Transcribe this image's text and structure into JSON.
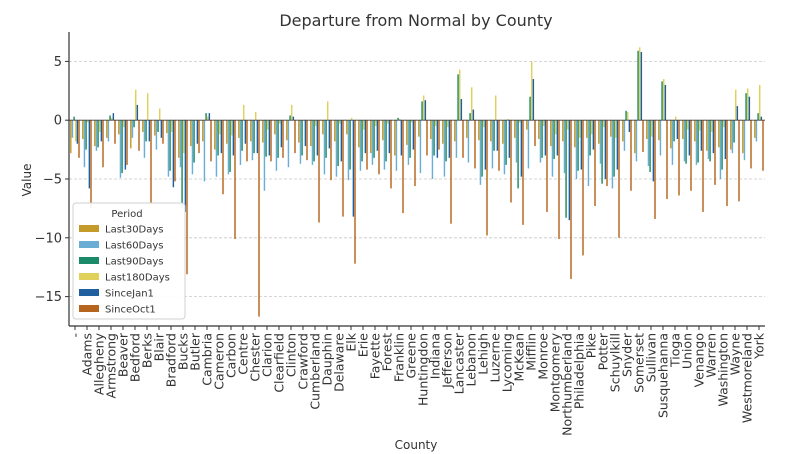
{
  "chart_data": {
    "type": "bar",
    "title": "Departure from Normal by County",
    "xlabel": "County",
    "ylabel": "Value",
    "ylim": [
      -17.5,
      7.5
    ],
    "yticks": [
      5,
      0,
      -5,
      -10,
      -15
    ],
    "grid": "horizontal dashed",
    "legend": {
      "title": "Period",
      "placement": "lower-left"
    },
    "categories": [
      "-",
      "Adams",
      "Allegheny",
      "Armstrong",
      "Beaver",
      "Bedford",
      "Berks",
      "Blair",
      "Bradford",
      "Bucks",
      "Butler",
      "Cambria",
      "Cameron",
      "Carbon",
      "Centre",
      "Chester",
      "Clarion",
      "Clearfield",
      "Clinton",
      "Crawford",
      "Cumberland",
      "Dauphin",
      "Delaware",
      "Elk",
      "Erie",
      "Fayette",
      "Forest",
      "Franklin",
      "Greene",
      "Huntingdon",
      "Indiana",
      "Jefferson",
      "Lancaster",
      "Lebanon",
      "Lehigh",
      "Luzerne",
      "Lycoming",
      "McKean",
      "Mifflin",
      "Monroe",
      "Montgomery",
      "Northumberland",
      "Philadelphia",
      "Pike",
      "Potter",
      "Schuylkill",
      "Snyder",
      "Somerset",
      "Sullivan",
      "Susquehanna",
      "Tioga",
      "Union",
      "Venango",
      "Warren",
      "Washington",
      "Wayne",
      "Westmoreland",
      "York"
    ],
    "series": [
      {
        "name": "Last30Days",
        "color": "#c49a2a",
        "values": [
          -2.8,
          -1.6,
          -2.2,
          -1.5,
          -1.2,
          -2.4,
          -1.0,
          -1.3,
          -1.1,
          -3.2,
          -2.2,
          -1.8,
          -2.5,
          -2.0,
          -1.5,
          -1.8,
          -1.9,
          -1.2,
          -1.7,
          -1.9,
          -2.2,
          -1.2,
          -1.8,
          -1.2,
          -2.3,
          -2.8,
          -1.7,
          -3.0,
          -2.1,
          -1.4,
          -1.6,
          -2.0,
          -1.8,
          -1.5,
          -1.7,
          -1.8,
          -2.0,
          -1.5,
          -0.8,
          -1.6,
          -2.2,
          -1.8,
          -2.3,
          -1.5,
          -2.0,
          -1.4,
          -1.8,
          -2.8,
          -1.6,
          -1.7,
          -2.4,
          -1.6,
          -1.8,
          -2.6,
          -2.3,
          -2.5,
          -2.8,
          -1.5
        ]
      },
      {
        "name": "Last60Days",
        "color": "#6aaed6",
        "values": [
          -1.5,
          -4.0,
          -2.6,
          -1.8,
          -4.9,
          -1.5,
          -3.2,
          -2.5,
          -4.8,
          -4.0,
          -4.6,
          -5.2,
          -4.8,
          -4.6,
          -3.8,
          -3.4,
          -6.0,
          -4.3,
          -4.0,
          -3.7,
          -3.8,
          -4.6,
          -4.8,
          -5.1,
          -4.3,
          -3.8,
          -4.2,
          -4.3,
          -3.8,
          -4.5,
          -5.0,
          -4.8,
          -3.2,
          -3.6,
          -5.5,
          -4.1,
          -4.6,
          -3.6,
          -4.1,
          -3.6,
          -4.8,
          -4.5,
          -5.0,
          -5.6,
          -3.7,
          -5.8,
          -2.6,
          -3.5,
          -3.9,
          -3.0,
          -3.8,
          -3.5,
          -3.8,
          -3.3,
          -5.0,
          -2.8,
          -3.4,
          -1.8
        ]
      },
      {
        "name": "Last90Days",
        "color": "#1a8a68",
        "values": [
          0.3,
          -2.5,
          -2.3,
          0.4,
          -4.5,
          -0.6,
          -1.8,
          -1.0,
          -4.3,
          -7.5,
          -3.6,
          0.6,
          -3.0,
          -4.4,
          -2.6,
          -2.8,
          -3.1,
          -3.2,
          0.4,
          -3.0,
          -3.5,
          -3.2,
          -3.9,
          -4.2,
          -3.5,
          -3.2,
          -3.5,
          0.2,
          -3.2,
          1.6,
          -3.0,
          -3.5,
          3.9,
          0.6,
          -4.8,
          -2.6,
          -3.8,
          -5.8,
          2.0,
          -3.2,
          -3.3,
          -8.3,
          -4.3,
          -3.0,
          -5.4,
          -4.8,
          0.8,
          5.9,
          -4.4,
          3.3,
          -1.8,
          -3.7,
          -3.6,
          -3.5,
          -4.2,
          -1.9,
          2.3,
          0.6
        ]
      },
      {
        "name": "Last180Days",
        "color": "#e0d15a",
        "values": [
          -1.8,
          -0.2,
          -1.0,
          0.2,
          -0.6,
          2.6,
          2.3,
          1.0,
          -1.0,
          -2.8,
          0.0,
          0.3,
          -1.2,
          -1.3,
          1.3,
          0.7,
          -0.8,
          -0.3,
          1.3,
          0.0,
          -0.5,
          1.6,
          -0.3,
          0.2,
          -0.8,
          -0.5,
          -0.3,
          0.1,
          -0.2,
          2.1,
          -0.5,
          -0.6,
          4.3,
          2.8,
          -0.6,
          2.1,
          0.1,
          -0.2,
          5.0,
          -0.5,
          -1.2,
          -0.8,
          -1.5,
          -1.2,
          -0.6,
          -1.5,
          0.7,
          6.2,
          -1.4,
          3.5,
          0.3,
          -0.8,
          -0.9,
          -1.0,
          -0.6,
          2.6,
          2.7,
          3.0
        ]
      },
      {
        "name": "SinceJan1",
        "color": "#1f5fa0",
        "values": [
          -2.0,
          -5.8,
          -1.8,
          0.6,
          -4.2,
          1.3,
          -1.8,
          -1.5,
          -5.7,
          -7.8,
          -2.0,
          0.6,
          -2.8,
          -3.0,
          -2.0,
          -2.8,
          -3.0,
          -2.3,
          0.3,
          -2.2,
          -3.0,
          -2.4,
          -3.5,
          -8.2,
          -2.8,
          -2.6,
          -2.8,
          -3.0,
          -2.5,
          1.7,
          -3.2,
          -3.2,
          1.8,
          0.9,
          -4.2,
          -2.6,
          -3.2,
          -4.8,
          3.5,
          -3.0,
          -3.0,
          -8.5,
          -4.2,
          -2.5,
          -5.0,
          -4.2,
          -1.0,
          5.8,
          -5.2,
          3.0,
          -1.6,
          -3.0,
          -2.6,
          -2.8,
          -3.3,
          1.2,
          2.0,
          0.3
        ]
      },
      {
        "name": "SinceOct1",
        "color": "#b5651d",
        "values": [
          -3.2,
          -7.5,
          -4.0,
          -2.0,
          -3.8,
          -2.6,
          -7.0,
          -2.0,
          -5.2,
          -13.1,
          -2.8,
          -3.5,
          -6.3,
          -10.1,
          -3.5,
          -16.7,
          -3.5,
          -3.2,
          -2.8,
          -3.4,
          -8.7,
          -5.1,
          -8.2,
          -12.2,
          -4.2,
          -4.6,
          -5.8,
          -7.9,
          -5.6,
          -3.0,
          -2.5,
          -8.8,
          -3.2,
          -4.1,
          -9.8,
          -4.3,
          -7.0,
          -8.9,
          -2.2,
          -7.8,
          -10.1,
          -13.5,
          -11.5,
          -7.3,
          -5.6,
          -10.0,
          -6.0,
          -2.7,
          -8.4,
          -6.7,
          -6.4,
          -6.0,
          -7.8,
          -5.5,
          -7.3,
          -6.9,
          -4.1,
          -4.3
        ]
      }
    ]
  }
}
